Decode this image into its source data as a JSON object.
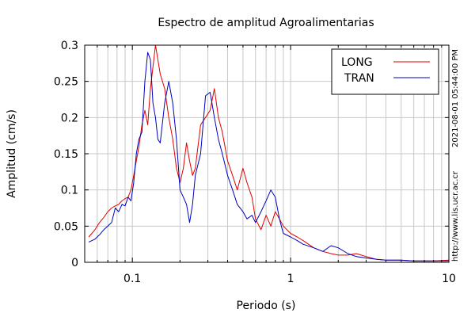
{
  "chart_data": {
    "type": "line",
    "title": "Espectro de amplitud Agroalimentarias",
    "xlabel": "Periodo (s)",
    "ylabel": "Amplitud (cm/s)",
    "x_scale": "log",
    "xlim": [
      0.05,
      10
    ],
    "ylim": [
      0,
      0.3
    ],
    "grid": true,
    "legend_position": "top-right",
    "x_ticks": [
      {
        "value": 0.1,
        "label": "0.1"
      },
      {
        "value": 1,
        "label": "1"
      },
      {
        "value": 10,
        "label": "10"
      }
    ],
    "y_ticks": [
      {
        "value": 0,
        "label": "0"
      },
      {
        "value": 0.05,
        "label": "0.05"
      },
      {
        "value": 0.1,
        "label": "0.1"
      },
      {
        "value": 0.15,
        "label": "0.15"
      },
      {
        "value": 0.2,
        "label": "0.2"
      },
      {
        "value": 0.25,
        "label": "0.25"
      },
      {
        "value": 0.3,
        "label": "0.3"
      }
    ],
    "series": [
      {
        "name": "LONG",
        "color": "#e00000",
        "x": [
          0.053,
          0.058,
          0.062,
          0.066,
          0.07,
          0.074,
          0.078,
          0.082,
          0.086,
          0.09,
          0.094,
          0.098,
          0.102,
          0.106,
          0.11,
          0.115,
          0.12,
          0.125,
          0.13,
          0.135,
          0.14,
          0.145,
          0.15,
          0.16,
          0.17,
          0.18,
          0.19,
          0.2,
          0.21,
          0.22,
          0.23,
          0.24,
          0.25,
          0.27,
          0.29,
          0.31,
          0.33,
          0.35,
          0.37,
          0.4,
          0.43,
          0.46,
          0.5,
          0.53,
          0.57,
          0.6,
          0.65,
          0.7,
          0.75,
          0.8,
          0.85,
          0.9,
          1.0,
          1.1,
          1.2,
          1.4,
          1.6,
          1.8,
          2.0,
          2.3,
          2.6,
          3.0,
          3.5,
          4.0,
          5.0,
          6.0,
          8.0,
          10.0
        ],
        "y": [
          0.035,
          0.045,
          0.055,
          0.062,
          0.07,
          0.075,
          0.078,
          0.08,
          0.085,
          0.088,
          0.09,
          0.1,
          0.12,
          0.14,
          0.16,
          0.19,
          0.21,
          0.19,
          0.24,
          0.27,
          0.3,
          0.28,
          0.26,
          0.24,
          0.2,
          0.17,
          0.13,
          0.11,
          0.13,
          0.165,
          0.14,
          0.12,
          0.13,
          0.19,
          0.2,
          0.21,
          0.24,
          0.2,
          0.18,
          0.14,
          0.12,
          0.1,
          0.13,
          0.11,
          0.09,
          0.06,
          0.045,
          0.065,
          0.05,
          0.07,
          0.06,
          0.05,
          0.04,
          0.035,
          0.03,
          0.02,
          0.015,
          0.012,
          0.01,
          0.01,
          0.012,
          0.008,
          0.004,
          0.003,
          0.003,
          0.002,
          0.002,
          0.003
        ]
      },
      {
        "name": "TRAN",
        "color": "#0000c0",
        "x": [
          0.053,
          0.058,
          0.062,
          0.066,
          0.07,
          0.074,
          0.078,
          0.082,
          0.086,
          0.09,
          0.094,
          0.098,
          0.102,
          0.106,
          0.11,
          0.115,
          0.12,
          0.125,
          0.13,
          0.135,
          0.14,
          0.145,
          0.15,
          0.16,
          0.17,
          0.18,
          0.19,
          0.2,
          0.21,
          0.22,
          0.23,
          0.24,
          0.25,
          0.27,
          0.29,
          0.31,
          0.33,
          0.35,
          0.37,
          0.4,
          0.43,
          0.46,
          0.5,
          0.53,
          0.57,
          0.6,
          0.65,
          0.7,
          0.75,
          0.8,
          0.85,
          0.9,
          1.0,
          1.1,
          1.2,
          1.4,
          1.6,
          1.8,
          2.0,
          2.3,
          2.6,
          3.0,
          3.5,
          4.0,
          5.0,
          6.0,
          8.0,
          10.0
        ],
        "y": [
          0.028,
          0.032,
          0.038,
          0.045,
          0.05,
          0.055,
          0.075,
          0.07,
          0.08,
          0.078,
          0.09,
          0.085,
          0.11,
          0.15,
          0.17,
          0.18,
          0.25,
          0.29,
          0.28,
          0.22,
          0.2,
          0.17,
          0.165,
          0.22,
          0.25,
          0.22,
          0.17,
          0.1,
          0.09,
          0.08,
          0.055,
          0.08,
          0.12,
          0.15,
          0.23,
          0.235,
          0.2,
          0.17,
          0.15,
          0.12,
          0.1,
          0.08,
          0.07,
          0.06,
          0.065,
          0.055,
          0.07,
          0.085,
          0.1,
          0.09,
          0.06,
          0.04,
          0.035,
          0.03,
          0.025,
          0.02,
          0.015,
          0.023,
          0.02,
          0.012,
          0.008,
          0.006,
          0.004,
          0.003,
          0.003,
          0.002,
          0.002,
          0.002
        ]
      }
    ]
  },
  "side_labels": {
    "timestamp": "2021-08-01 05:44:00 PM",
    "url": "http://www.lis.ucr.ac.cr"
  }
}
